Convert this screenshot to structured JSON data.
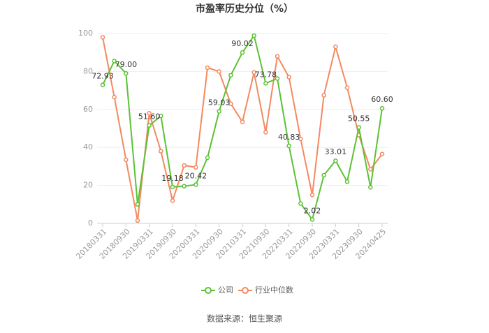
{
  "chart_data": {
    "type": "line",
    "title": "市盈率历史分位（%）",
    "categories": [
      "20180331",
      null,
      "20180930",
      null,
      "20190331",
      null,
      "20190930",
      null,
      "20200331",
      null,
      "20200930",
      null,
      "20210331",
      null,
      "20210930",
      null,
      "20220331",
      null,
      "20220930",
      null,
      "20230331",
      null,
      "20230930",
      null,
      "20240425"
    ],
    "series": [
      {
        "name": "公司",
        "color": "#5cc234",
        "values": [
          72.93,
          85.5,
          79.0,
          10,
          51.6,
          56.6,
          19.18,
          19.6,
          20.42,
          34.6,
          59.03,
          78,
          90.02,
          98.9,
          73.78,
          76.3,
          40.83,
          10.5,
          2.02,
          25.4,
          33.01,
          22,
          50.55,
          19,
          60.6
        ],
        "value_labels": [
          "72.93",
          null,
          "79.00",
          null,
          "51.60",
          null,
          "19.18",
          null,
          "20.42",
          null,
          "59.03",
          null,
          "90.02",
          null,
          "73.78",
          null,
          "40.83",
          null,
          "2.02",
          null,
          "33.01",
          null,
          "50.55",
          null,
          "60.60"
        ]
      },
      {
        "name": "行业中位数",
        "color": "#f4895f",
        "values": [
          98,
          66.5,
          33.5,
          1.5,
          58,
          38,
          12,
          30.5,
          29.5,
          82,
          80,
          63,
          53.5,
          79.5,
          48,
          88,
          77,
          44.5,
          15,
          67.5,
          93,
          71.5,
          46.5,
          28.5,
          36.5
        ]
      }
    ],
    "ylim": [
      0,
      100
    ],
    "yticks": [
      0,
      20,
      40,
      60,
      80,
      100
    ],
    "grid": true,
    "source": "数据来源：恒生聚源"
  }
}
